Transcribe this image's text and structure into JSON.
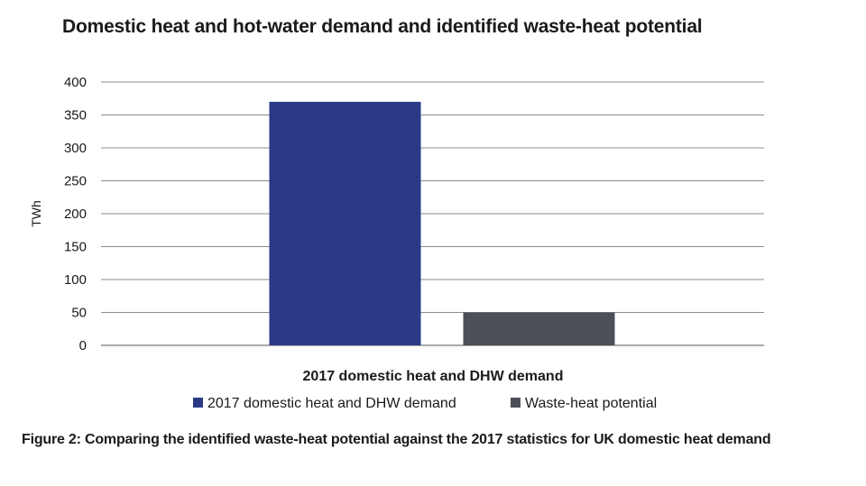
{
  "chart_data": {
    "type": "bar",
    "title": "Domestic heat and hot-water demand and identified waste-heat potential",
    "xlabel": "2017 domestic heat and DHW demand",
    "ylabel": "TWh",
    "ylim": [
      0,
      400
    ],
    "yticks": [
      0,
      50,
      100,
      150,
      200,
      250,
      300,
      350,
      400
    ],
    "grid": true,
    "legend_position": "bottom",
    "series": [
      {
        "name": "2017 domestic heat and DHW demand",
        "values": [
          370
        ],
        "color": "#2b3a86"
      },
      {
        "name": "Waste-heat potential",
        "values": [
          50
        ],
        "color": "#4b4f57"
      }
    ]
  },
  "caption": "Figure 2: Comparing the identified waste-heat potential against the 2017 statistics for UK domestic heat demand"
}
